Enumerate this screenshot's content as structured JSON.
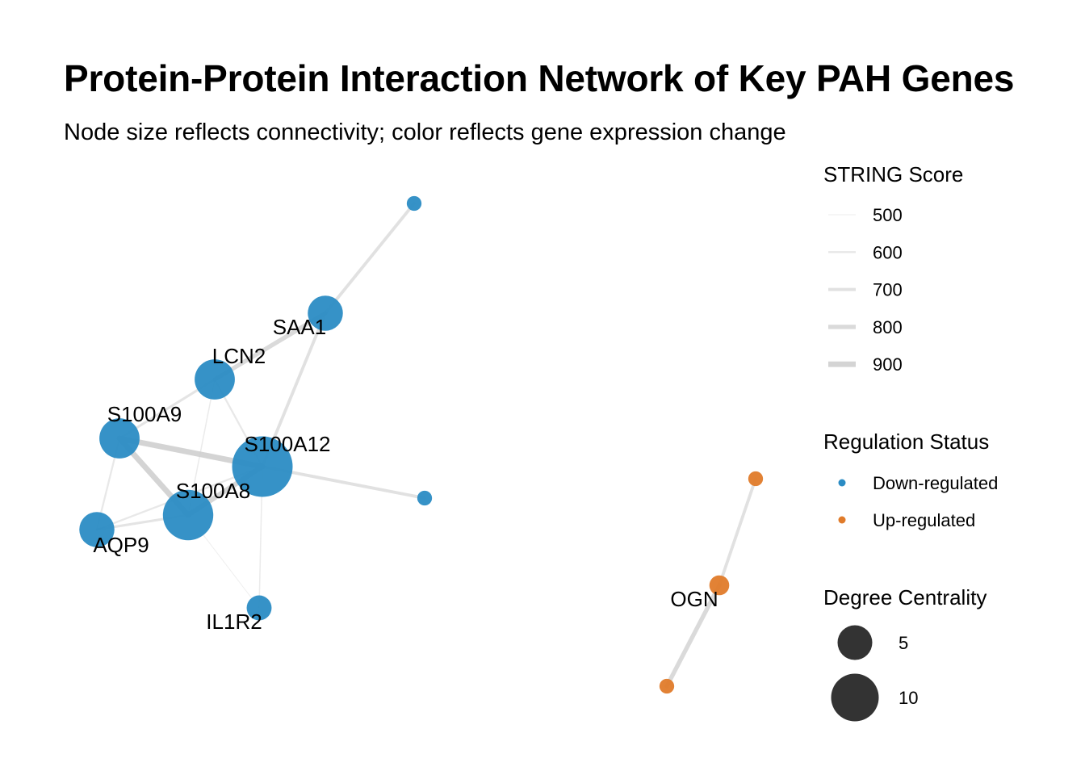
{
  "title": "Protein-Protein Interaction Network of Key PAH Genes",
  "subtitle": "Node size reflects connectivity; color reflects gene expression change",
  "colors": {
    "down": "#2b8cc4",
    "up": "#e07b2a",
    "edge": "#cfcfcf",
    "legend_size": "#333333"
  },
  "nodes": [
    {
      "id": "n_top",
      "label": "",
      "status": "down",
      "degree": 1
    },
    {
      "id": "SAA1",
      "label": "SAA1",
      "status": "down",
      "degree": 5
    },
    {
      "id": "LCN2",
      "label": "LCN2",
      "status": "down",
      "degree": 6
    },
    {
      "id": "S100A9",
      "label": "S100A9",
      "status": "down",
      "degree": 6
    },
    {
      "id": "S100A12",
      "label": "S100A12",
      "status": "down",
      "degree": 10
    },
    {
      "id": "n_right",
      "label": "",
      "status": "down",
      "degree": 1
    },
    {
      "id": "S100A8",
      "label": "S100A8",
      "status": "down",
      "degree": 8
    },
    {
      "id": "AQP9",
      "label": "AQP9",
      "status": "down",
      "degree": 5
    },
    {
      "id": "IL1R2",
      "label": "IL1R2",
      "status": "down",
      "degree": 3
    },
    {
      "id": "n_up_top",
      "label": "",
      "status": "up",
      "degree": 1
    },
    {
      "id": "OGN",
      "label": "OGN",
      "status": "up",
      "degree": 2
    },
    {
      "id": "n_up_bottom",
      "label": "",
      "status": "up",
      "degree": 1
    }
  ],
  "edges": [
    {
      "source": "n_top",
      "target": "SAA1",
      "score": 700
    },
    {
      "source": "SAA1",
      "target": "LCN2",
      "score": 800
    },
    {
      "source": "SAA1",
      "target": "S100A12",
      "score": 700
    },
    {
      "source": "LCN2",
      "target": "S100A9",
      "score": 650
    },
    {
      "source": "LCN2",
      "target": "S100A12",
      "score": 600
    },
    {
      "source": "LCN2",
      "target": "S100A8",
      "score": 550
    },
    {
      "source": "S100A9",
      "target": "S100A12",
      "score": 900
    },
    {
      "source": "S100A9",
      "target": "S100A8",
      "score": 900
    },
    {
      "source": "S100A9",
      "target": "AQP9",
      "score": 600
    },
    {
      "source": "S100A12",
      "target": "S100A8",
      "score": 850
    },
    {
      "source": "S100A12",
      "target": "n_right",
      "score": 700
    },
    {
      "source": "S100A12",
      "target": "AQP9",
      "score": 600
    },
    {
      "source": "S100A12",
      "target": "IL1R2",
      "score": 550
    },
    {
      "source": "S100A8",
      "target": "AQP9",
      "score": 650
    },
    {
      "source": "S100A8",
      "target": "IL1R2",
      "score": 500
    },
    {
      "source": "n_up_top",
      "target": "OGN",
      "score": 700
    },
    {
      "source": "OGN",
      "target": "n_up_bottom",
      "score": 800
    }
  ],
  "legend": {
    "string_score": {
      "title": "STRING Score",
      "items": [
        {
          "label": "500",
          "score": 500
        },
        {
          "label": "600",
          "score": 600
        },
        {
          "label": "700",
          "score": 700
        },
        {
          "label": "800",
          "score": 800
        },
        {
          "label": "900",
          "score": 900
        }
      ]
    },
    "regulation": {
      "title": "Regulation Status",
      "items": [
        {
          "label": "Down-regulated",
          "status": "down"
        },
        {
          "label": "Up-regulated",
          "status": "up"
        }
      ]
    },
    "degree": {
      "title": "Degree Centrality",
      "items": [
        {
          "label": "5",
          "degree": 5
        },
        {
          "label": "10",
          "degree": 10
        }
      ]
    }
  }
}
